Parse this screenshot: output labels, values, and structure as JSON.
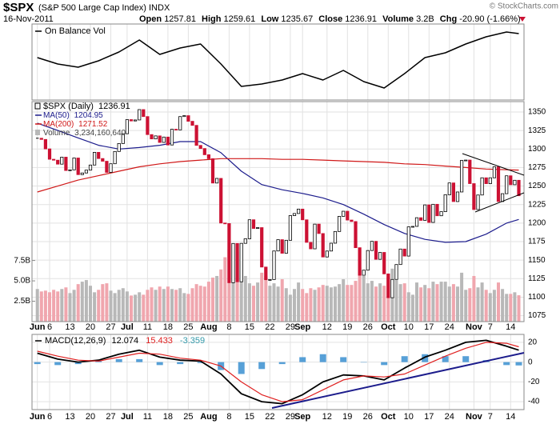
{
  "header": {
    "symbol": "$SPX",
    "name": "(S&P 500 Large Cap Index) INDX",
    "date": "16-Nov-2011",
    "quote": [
      {
        "label": "Open",
        "value": "1257.81"
      },
      {
        "label": "High",
        "value": "1259.61"
      },
      {
        "label": "Low",
        "value": "1235.67"
      },
      {
        "label": "Close",
        "value": "1236.91"
      },
      {
        "label": "Volume",
        "value": "3.2B"
      },
      {
        "label": "Chg",
        "value": "-20.90 (-1.66%)"
      }
    ]
  },
  "watermark": "© StockCharts.com",
  "chart_data": {
    "type": "stock",
    "categories": [
      "Jun",
      null,
      null,
      "6",
      null,
      null,
      null,
      null,
      "13",
      null,
      null,
      null,
      null,
      "20",
      null,
      null,
      null,
      null,
      "27",
      null,
      null,
      null,
      "Jul",
      null,
      null,
      null,
      null,
      "11",
      null,
      null,
      null,
      null,
      "18",
      null,
      null,
      null,
      null,
      "25",
      null,
      null,
      null,
      null,
      "Aug",
      null,
      null,
      null,
      null,
      "8",
      null,
      null,
      null,
      null,
      "15",
      null,
      null,
      null,
      null,
      "22",
      null,
      null,
      null,
      null,
      "29",
      null,
      null,
      "Sep",
      null,
      null,
      null,
      null,
      null,
      "12",
      null,
      null,
      null,
      null,
      "19",
      null,
      null,
      null,
      null,
      "26",
      null,
      null,
      null,
      null,
      "Oct",
      null,
      null,
      null,
      null,
      "10",
      null,
      null,
      null,
      null,
      "17",
      null,
      null,
      null,
      null,
      "24",
      null,
      null,
      null,
      null,
      null,
      "Nov",
      null,
      null,
      null,
      "7",
      null,
      null,
      null,
      null,
      "14",
      null,
      null
    ],
    "close": [
      1314.55,
      1312.94,
      1300.16,
      1286.17,
      1284.94,
      1279.56,
      1289.0,
      1270.98,
      1271.83,
      1287.87,
      1265.42,
      1267.64,
      1271.5,
      1278.36,
      1295.52,
      1287.14,
      1283.5,
      1268.45,
      1280.1,
      1296.67,
      1307.41,
      1320.64,
      1339.67,
      1337.88,
      1339.22,
      1353.22,
      1343.8,
      1319.49,
      1313.64,
      1317.72,
      1308.87,
      1316.14,
      1305.44,
      1326.73,
      1325.84,
      1343.8,
      1345.02,
      1337.43,
      1331.94,
      1304.89,
      1300.67,
      1292.28,
      1286.94,
      1254.05,
      1260.34,
      1200.07,
      1199.38,
      1119.46,
      1172.53,
      1120.76,
      1172.64,
      1178.81,
      1204.49,
      1192.76,
      1193.89,
      1140.65,
      1123.53,
      1123.82,
      1162.35,
      1177.6,
      1159.27,
      1176.8,
      1210.08,
      1212.92,
      1218.89,
      1204.42,
      1173.97,
      1165.24,
      1198.62,
      1185.9,
      1154.23,
      1162.27,
      1172.87,
      1188.68,
      1209.11,
      1216.01,
      1204.09,
      1202.09,
      1166.76,
      1129.56,
      1136.43,
      1162.95,
      1175.38,
      1151.06,
      1160.4,
      1131.42,
      1099.23,
      1123.95,
      1144.03,
      1164.97,
      1155.46,
      1194.89,
      1195.54,
      1207.25,
      1203.66,
      1224.58,
      1200.86,
      1225.38,
      1209.88,
      1215.39,
      1238.25,
      1254.19,
      1229.05,
      1242.0,
      1284.59,
      1285.09,
      1253.3,
      1218.28,
      1237.9,
      1261.15,
      1253.23,
      1261.12,
      1275.92,
      1229.1,
      1239.7,
      1263.85,
      1251.78,
      1257.81,
      1236.91
    ],
    "indicator_x": [
      0,
      5,
      10,
      15,
      20,
      25,
      30,
      35,
      40,
      45,
      50,
      55,
      60,
      65,
      70,
      75,
      80,
      85,
      90,
      95,
      100,
      105,
      110,
      115,
      118
    ],
    "obv": {
      "name": "On Balance Vol",
      "color": "#000000",
      "ylim": [
        0,
        47.5
      ],
      "values": [
        26.5,
        22.5,
        20.5,
        24.5,
        30,
        37.5,
        28.5,
        32.5,
        35,
        22.5,
        8.5,
        10,
        12.5,
        16.5,
        12.5,
        18.5,
        11.5,
        7.5,
        16.5,
        26.5,
        29.5,
        35,
        39.5,
        42.5,
        41.5
      ]
    },
    "price": {
      "name": "$SPX (Daily)",
      "color_up": "#000000",
      "color_down": "#cc1133",
      "ylim": [
        1067,
        1364
      ],
      "yticks": [
        1075,
        1100,
        1125,
        1150,
        1175,
        1200,
        1225,
        1250,
        1275,
        1300,
        1325,
        1350
      ],
      "grid": true
    },
    "ma": [
      {
        "name": "MA(50)",
        "color": "#1c1c8c",
        "values": [
          1335,
          1325,
          1315,
          1305,
          1300,
          1302,
          1305,
          1310,
          1310,
          1295,
          1270,
          1252,
          1245,
          1240,
          1234,
          1225,
          1212,
          1198,
          1186,
          1178,
          1174,
          1175,
          1185,
          1200,
          1204.95
        ]
      },
      {
        "name": "MA(200)",
        "color": "#d01818",
        "values": [
          1242,
          1250,
          1258,
          1264,
          1270,
          1276,
          1280,
          1283,
          1285,
          1287,
          1287,
          1287,
          1286,
          1286,
          1285,
          1284,
          1283,
          1282,
          1280,
          1279,
          1277,
          1275,
          1273,
          1272,
          1271.52
        ]
      }
    ],
    "volume": {
      "name": "Volume",
      "color_up": "#b8b8b8",
      "color_down": "#f0a6ae",
      "ylim": [
        0,
        27
      ],
      "yticks": [
        {
          "value": 2.5,
          "label": "2.5B"
        },
        {
          "value": 5.0,
          "label": "5.0B"
        },
        {
          "value": 7.5,
          "label": "7.5B"
        }
      ],
      "last_label": "3,234,160,640",
      "values": [
        4.0,
        3.7,
        3.8,
        3.6,
        3.9,
        3.7,
        4.0,
        4.2,
        3.5,
        3.9,
        4.6,
        4.9,
        5.1,
        4.4,
        3.6,
        3.9,
        4.6,
        4.7,
        3.8,
        3.5,
        3.9,
        4.1,
        3.7,
        3.2,
        3.3,
        3.6,
        3.3,
        3.9,
        4.2,
        3.9,
        4.3,
        4.0,
        4.3,
        4.0,
        3.9,
        4.1,
        3.5,
        3.4,
        4.1,
        4.6,
        4.4,
        4.3,
        4.9,
        5.4,
        5.6,
        6.4,
        7.9,
        8.9,
        7.7,
        8.6,
        6.3,
        5.6,
        4.7,
        4.4,
        4.8,
        6.0,
        5.6,
        4.4,
        4.7,
        4.3,
        5.2,
        4.1,
        3.3,
        4.0,
        4.8,
        4.0,
        3.5,
        4.1,
        3.9,
        4.2,
        4.5,
        4.4,
        4.2,
        4.3,
        4.6,
        5.2,
        4.5,
        4.5,
        5.0,
        6.7,
        5.6,
        4.7,
        5.0,
        4.3,
        4.7,
        4.4,
        5.5,
        6.5,
        5.1,
        4.6,
        4.7,
        3.6,
        3.3,
        4.8,
        4.2,
        4.5,
        4.1,
        4.9,
        4.6,
        4.9,
        4.9,
        4.3,
        4.6,
        4.3,
        6.0,
        3.9,
        4.1,
        5.6,
        4.2,
        4.8,
        3.9,
        3.5,
        3.9,
        4.8,
        4.0,
        3.4,
        3.4,
        3.6,
        3.23416064
      ]
    },
    "macd": {
      "name": "MACD(12,26,9)",
      "ylim": [
        -48,
        28
      ],
      "yticks": [
        -40,
        -20,
        0,
        20
      ],
      "grid": true,
      "series": [
        {
          "color": "#000000",
          "values": [
            9,
            3,
            0,
            2,
            8,
            12,
            5,
            2,
            1,
            -12,
            -32,
            -40,
            -42,
            -33,
            -20,
            -13,
            -14,
            -18,
            -6,
            5,
            12,
            20,
            22,
            16,
            12.074
          ]
        },
        {
          "color": "#e02020",
          "values": [
            11,
            6,
            2,
            1,
            5,
            9,
            8,
            4,
            2,
            -4,
            -20,
            -33,
            -40,
            -38,
            -28,
            -18,
            -14,
            -15,
            -12,
            -3,
            6,
            14,
            20,
            19,
            15.433
          ]
        },
        {
          "type": "histogram",
          "color": "#3a8fd0",
          "values": [
            -2,
            -3,
            -2,
            1,
            3,
            3,
            -3,
            -2,
            -1,
            -8,
            -12,
            -7,
            -2,
            5,
            8,
            5,
            0,
            -3,
            6,
            8,
            6,
            6,
            2,
            -3,
            -3.359
          ]
        }
      ]
    }
  }
}
